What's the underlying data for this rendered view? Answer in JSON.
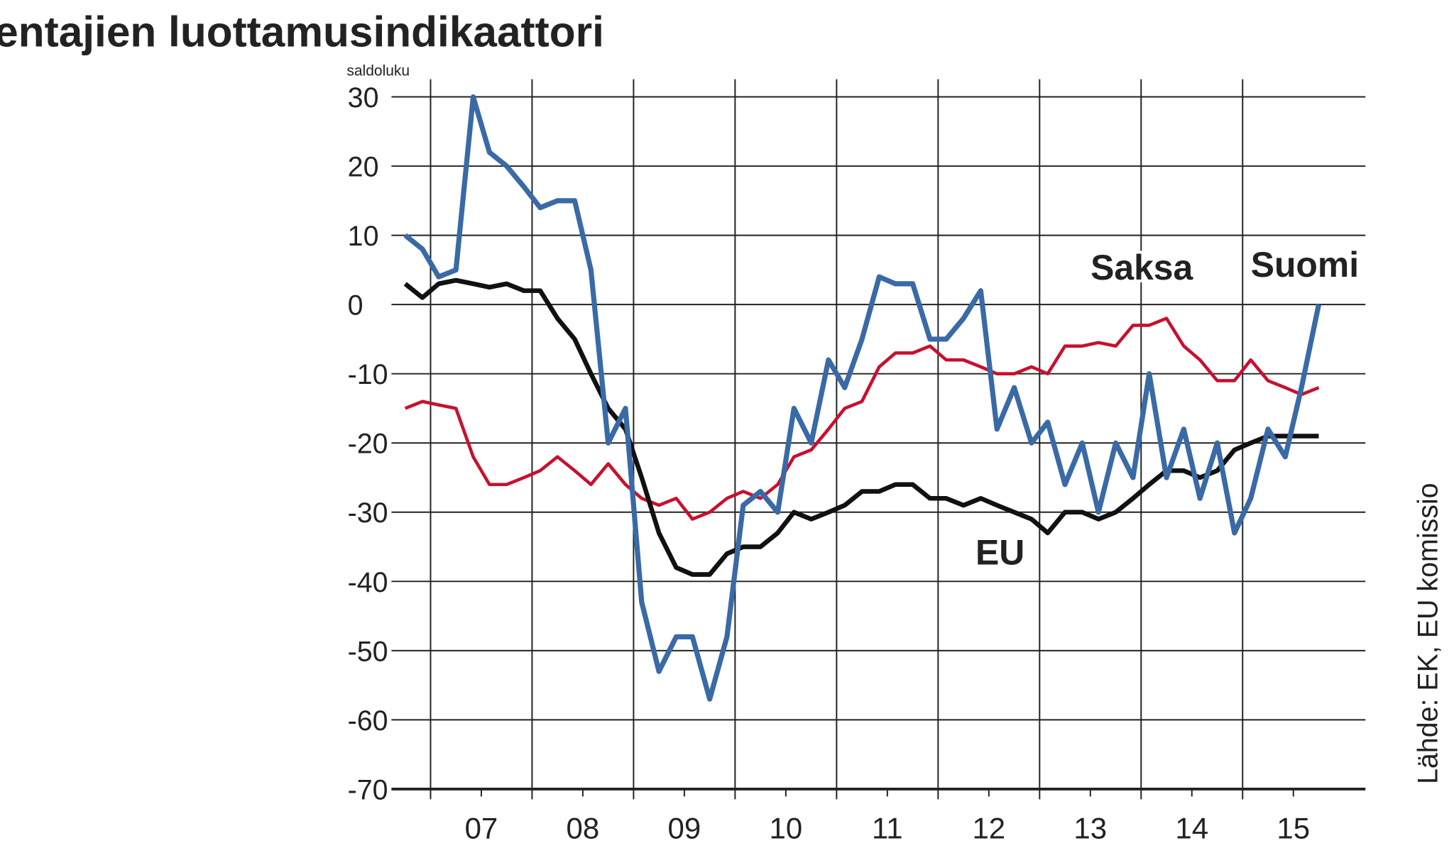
{
  "chart_data": {
    "type": "line",
    "title": "entajien luottamusindikaattori",
    "ylabel": "saldoluku",
    "source": "Lähde: EK, EU komissio",
    "xlim": [
      2006.28,
      2015.71
    ],
    "ylim": [
      -70,
      30
    ],
    "yticks": [
      30,
      20,
      10,
      0,
      -10,
      -20,
      -30,
      -40,
      -50,
      -60,
      -70
    ],
    "xticks": [
      {
        "value": 2007,
        "label": "07"
      },
      {
        "value": 2008,
        "label": "08"
      },
      {
        "value": 2009,
        "label": "09"
      },
      {
        "value": 2010,
        "label": "10"
      },
      {
        "value": 2011,
        "label": "11"
      },
      {
        "value": 2012,
        "label": "12"
      },
      {
        "value": 2013,
        "label": "13"
      },
      {
        "value": 2014,
        "label": "14"
      },
      {
        "value": 2015,
        "label": "15"
      }
    ],
    "xgrid": [
      2006.5,
      2007.5,
      2008.5,
      2009.5,
      2010.5,
      2011.5,
      2012.5,
      2013.5,
      2014.5
    ],
    "grid": true,
    "x": [
      2006.25,
      2006.42,
      2006.58,
      2006.75,
      2006.92,
      2007.08,
      2007.25,
      2007.42,
      2007.58,
      2007.75,
      2007.92,
      2008.08,
      2008.25,
      2008.42,
      2008.58,
      2008.75,
      2008.92,
      2009.08,
      2009.25,
      2009.42,
      2009.58,
      2009.75,
      2009.92,
      2010.08,
      2010.25,
      2010.42,
      2010.58,
      2010.75,
      2010.92,
      2011.08,
      2011.25,
      2011.42,
      2011.58,
      2011.75,
      2011.92,
      2012.08,
      2012.25,
      2012.42,
      2012.58,
      2012.75,
      2012.92,
      2013.08,
      2013.25,
      2013.42,
      2013.58,
      2013.75,
      2013.92,
      2014.08,
      2014.25,
      2014.42,
      2014.58,
      2014.75,
      2014.92,
      2015.08,
      2015.25
    ],
    "series": [
      {
        "name": "Saksa",
        "color": "#c8102e",
        "width": 3.5,
        "values": [
          -15,
          -14,
          -14.5,
          -15,
          -22,
          -26,
          -26,
          -25,
          -24,
          -22,
          -24,
          -26,
          -23,
          -26,
          -28,
          -29,
          -28,
          -31,
          -30,
          -28,
          -27,
          -28,
          -26,
          -22,
          -21,
          -18,
          -15,
          -14,
          -9,
          -7,
          -7,
          -6,
          -8,
          -8,
          -9,
          -10,
          -10,
          -9,
          -10,
          -6,
          -6,
          -5.5,
          -6,
          -3,
          -3,
          -2,
          -6,
          -8,
          -11,
          -11,
          -8,
          -11,
          -12,
          -13,
          -12
        ]
      },
      {
        "name": "EU",
        "color": "#111111",
        "width": 5,
        "values": [
          3,
          1,
          3,
          3.5,
          3,
          2.5,
          3,
          2,
          2,
          -2,
          -5,
          -10,
          -15,
          -18,
          -25,
          -33,
          -38,
          -39,
          -39,
          -36,
          -35,
          -35,
          -33,
          -30,
          -31,
          -30,
          -29,
          -27,
          -27,
          -26,
          -26,
          -28,
          -28,
          -29,
          -28,
          -29,
          -30,
          -31,
          -33,
          -30,
          -30,
          -31,
          -30,
          -28,
          -26,
          -24,
          -24,
          -25,
          -24,
          -21,
          -20,
          -19,
          -19,
          -19,
          -19
        ]
      },
      {
        "name": "Suomi",
        "color": "#3a6aa6",
        "width": 5.5,
        "values": [
          10,
          8,
          4,
          5,
          30,
          22,
          20,
          17,
          14,
          15,
          15,
          5,
          -20,
          -15,
          -43,
          -53,
          -48,
          -48,
          -57,
          -48,
          -29,
          -27,
          -30,
          -15,
          -20,
          -8,
          -12,
          -5,
          4,
          3,
          3,
          -5,
          -5,
          -2,
          2,
          -18,
          -12,
          -20,
          -17,
          -26,
          -20,
          -30,
          -20,
          -25,
          -10,
          -25,
          -18,
          -28,
          -20,
          -33,
          -28,
          -18,
          -22,
          -12,
          0
        ]
      }
    ]
  }
}
